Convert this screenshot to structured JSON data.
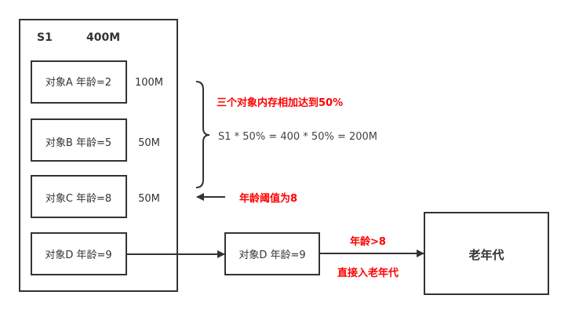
{
  "survivor": {
    "name": "S1",
    "size": "400M"
  },
  "objects": [
    {
      "label": "对象A  年龄=2",
      "size": "100M"
    },
    {
      "label": "对象B  年龄=5",
      "size": "50M"
    },
    {
      "label": "对象C  年龄=8",
      "size": "50M"
    },
    {
      "label": "对象D 年龄=9",
      "size": ""
    }
  ],
  "annotations": {
    "sum_note": "三个对象内存相加达到50%",
    "formula": "S1 * 50% = 400 * 50% = 200M",
    "threshold": "年龄阈值为8",
    "promote_condition": "年龄>8",
    "promote_action": "直接入老年代"
  },
  "moved_object": {
    "label": "对象D 年龄=9"
  },
  "old_gen": {
    "label": "老年代"
  },
  "colors": {
    "stroke": "#333333",
    "highlight": "#ff0000"
  }
}
